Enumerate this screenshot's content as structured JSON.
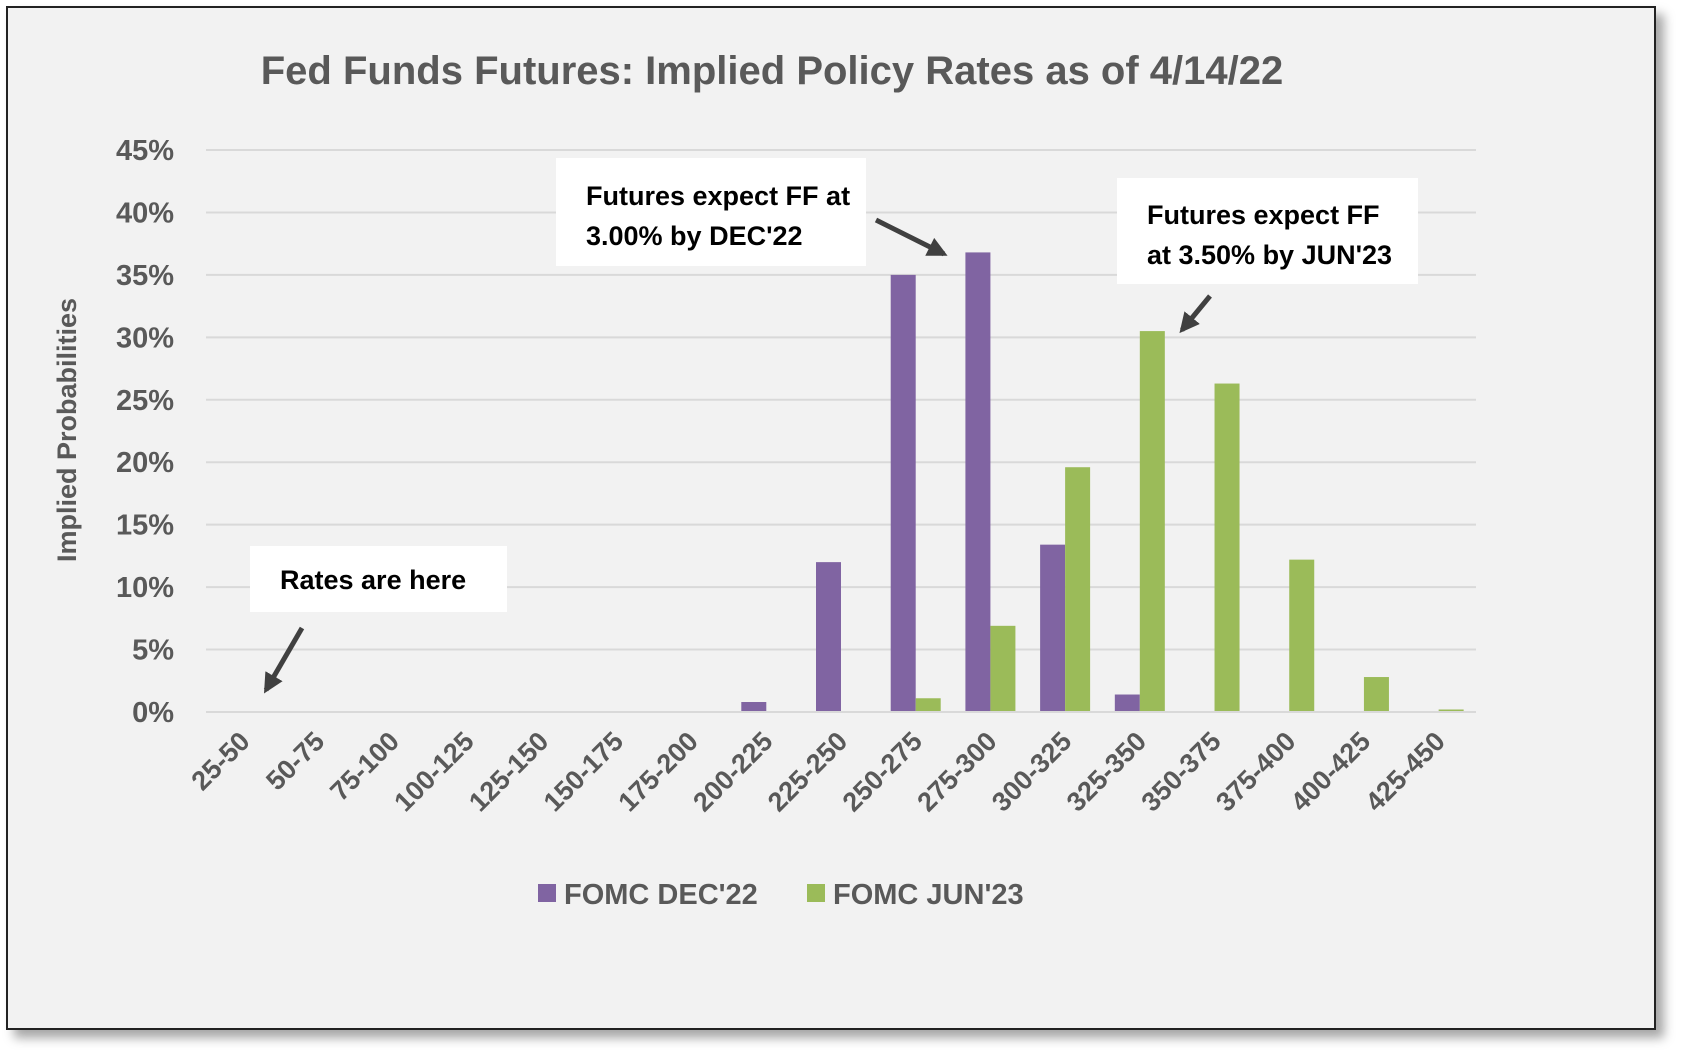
{
  "chart_data": {
    "type": "bar",
    "title": "Fed Funds Futures: Implied Policy Rates as of 4/14/22",
    "xlabel": "",
    "ylabel": "Implied Probabilities",
    "categories": [
      "25-50",
      "50-75",
      "75-100",
      "100-125",
      "125-150",
      "150-175",
      "175-200",
      "200-225",
      "225-250",
      "250-275",
      "275-300",
      "300-325",
      "325-350",
      "350-375",
      "375-400",
      "400-425",
      "425-450"
    ],
    "series": [
      {
        "name": "FOMC DEC'22",
        "color": "#8064a2",
        "values": [
          0,
          0,
          0,
          0,
          0,
          0,
          0,
          0.8,
          12.0,
          35.0,
          36.8,
          13.4,
          1.4,
          0,
          0,
          0,
          0
        ]
      },
      {
        "name": "FOMC JUN'23",
        "color": "#9bbb59",
        "values": [
          0,
          0,
          0,
          0,
          0,
          0,
          0,
          0,
          0,
          1.1,
          6.9,
          19.6,
          30.5,
          26.3,
          12.2,
          2.8,
          0.2
        ]
      }
    ],
    "ylim": [
      0,
      45
    ],
    "yticks": [
      "0%",
      "5%",
      "10%",
      "15%",
      "20%",
      "25%",
      "30%",
      "35%",
      "40%",
      "45%"
    ],
    "grid": true,
    "legend": "bottom-center",
    "annotations": [
      {
        "lines": [
          "Futures expect FF at",
          "3.00% by DEC'22"
        ]
      },
      {
        "lines": [
          "Futures expect FF",
          "at 3.50% by JUN'23"
        ]
      },
      {
        "lines": [
          "Rates are here"
        ]
      }
    ]
  }
}
